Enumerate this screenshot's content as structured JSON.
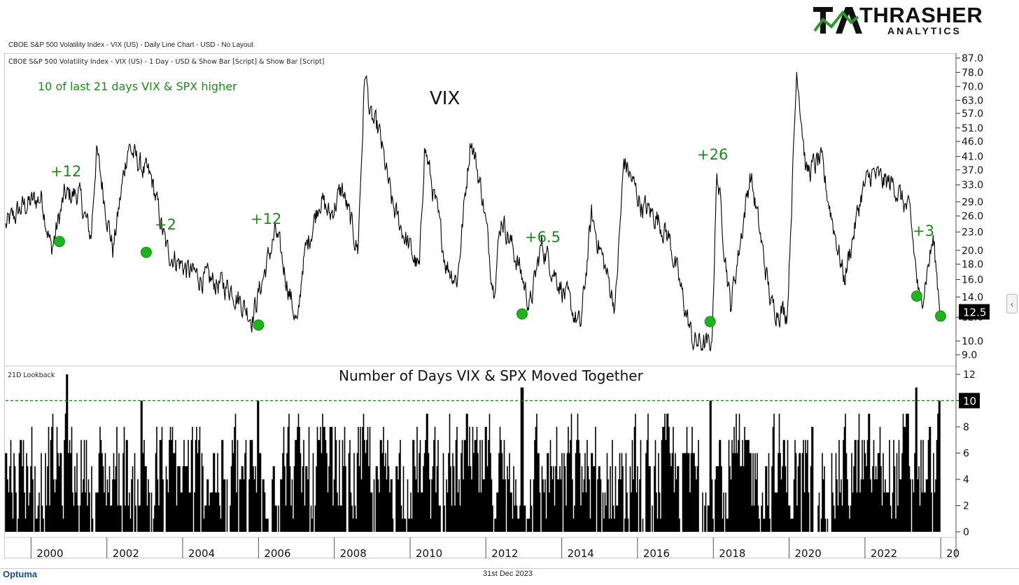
{
  "brand": {
    "name_main": "THRASHER",
    "name_sub": "ANALYTICS",
    "logo_mark": "TA",
    "footer_logo": "Optuma"
  },
  "header": {
    "chart_title": "CBOE S&P 500 Volatility Index - VIX (US) - Daily Line Chart - USD - No Layout"
  },
  "footer": {
    "date": "31st Dec 2023"
  },
  "chart_data": [
    {
      "type": "line",
      "panel_label": "CBOE S&P 500 Volatility Index - VIX (US) - 1 Day - USD & Show Bar [Script] & Show Bar [Script]",
      "title": "VIX",
      "subtitle": "10 of last 21 days VIX & SPX higher",
      "y_scale": "log",
      "ylim": [
        8.5,
        90
      ],
      "y_ticks": [
        "87.0",
        "78.0",
        "70.0",
        "63.0",
        "57.0",
        "51.0",
        "46.0",
        "41.0",
        "37.0",
        "33.0",
        "29.0",
        "26.0",
        "23.0",
        "20.0",
        "18.0",
        "16.0",
        "14.0",
        "12.0",
        "10.0",
        "9.0"
      ],
      "last_value": "12.5",
      "x_range": [
        "1999-05",
        "2023-12"
      ],
      "anchors": [
        {
          "date": "1999-05-01",
          "y": 24
        },
        {
          "date": "1999-10-15",
          "y": 28
        },
        {
          "date": "2000-04-15",
          "y": 30
        },
        {
          "date": "2000-07-15",
          "y": 20
        },
        {
          "date": "2000-11-15",
          "y": 30
        },
        {
          "date": "2001-04-01",
          "y": 31
        },
        {
          "date": "2001-08-01",
          "y": 22
        },
        {
          "date": "2001-09-21",
          "y": 43
        },
        {
          "date": "2002-03-01",
          "y": 20
        },
        {
          "date": "2002-07-24",
          "y": 45
        },
        {
          "date": "2002-10-09",
          "y": 40
        },
        {
          "date": "2003-03-11",
          "y": 34
        },
        {
          "date": "2003-08-01",
          "y": 20
        },
        {
          "date": "2004-03-01",
          "y": 17
        },
        {
          "date": "2004-08-01",
          "y": 16
        },
        {
          "date": "2005-04-15",
          "y": 15
        },
        {
          "date": "2005-11-01",
          "y": 12
        },
        {
          "date": "2006-06-15",
          "y": 23
        },
        {
          "date": "2007-01-15",
          "y": 11
        },
        {
          "date": "2007-03-01",
          "y": 18
        },
        {
          "date": "2007-08-16",
          "y": 30
        },
        {
          "date": "2007-11-20",
          "y": 26
        },
        {
          "date": "2008-03-17",
          "y": 32
        },
        {
          "date": "2008-08-15",
          "y": 20
        },
        {
          "date": "2008-10-24",
          "y": 80
        },
        {
          "date": "2008-12-15",
          "y": 55
        },
        {
          "date": "2009-03-09",
          "y": 49
        },
        {
          "date": "2009-07-15",
          "y": 28
        },
        {
          "date": "2010-04-01",
          "y": 17
        },
        {
          "date": "2010-05-20",
          "y": 45
        },
        {
          "date": "2010-12-15",
          "y": 18
        },
        {
          "date": "2011-04-01",
          "y": 16
        },
        {
          "date": "2011-08-08",
          "y": 48
        },
        {
          "date": "2011-12-01",
          "y": 30
        },
        {
          "date": "2012-03-15",
          "y": 15
        },
        {
          "date": "2012-06-01",
          "y": 26
        },
        {
          "date": "2012-12-01",
          "y": 17
        },
        {
          "date": "2013-03-01",
          "y": 13
        },
        {
          "date": "2013-06-20",
          "y": 21
        },
        {
          "date": "2014-07-01",
          "y": 11
        },
        {
          "date": "2014-10-15",
          "y": 26
        },
        {
          "date": "2015-06-01",
          "y": 13
        },
        {
          "date": "2015-08-24",
          "y": 40
        },
        {
          "date": "2016-02-11",
          "y": 28
        },
        {
          "date": "2016-06-27",
          "y": 26
        },
        {
          "date": "2016-11-01",
          "y": 22
        },
        {
          "date": "2017-06-15",
          "y": 10
        },
        {
          "date": "2017-12-15",
          "y": 9.5
        },
        {
          "date": "2018-02-05",
          "y": 37
        },
        {
          "date": "2018-06-15",
          "y": 13
        },
        {
          "date": "2018-12-24",
          "y": 36
        },
        {
          "date": "2019-07-15",
          "y": 13
        },
        {
          "date": "2019-12-15",
          "y": 12.5
        },
        {
          "date": "2020-03-16",
          "y": 82
        },
        {
          "date": "2020-06-15",
          "y": 36
        },
        {
          "date": "2020-10-30",
          "y": 40
        },
        {
          "date": "2021-06-15",
          "y": 16
        },
        {
          "date": "2021-12-01",
          "y": 31
        },
        {
          "date": "2022-03-07",
          "y": 36
        },
        {
          "date": "2022-06-15",
          "y": 34
        },
        {
          "date": "2022-10-12",
          "y": 33
        },
        {
          "date": "2023-03-13",
          "y": 26
        },
        {
          "date": "2023-06-15",
          "y": 13
        },
        {
          "date": "2023-10-20",
          "y": 21.7
        },
        {
          "date": "2023-12-31",
          "y": 12.5
        }
      ],
      "signals": [
        {
          "date": "2000-10-01",
          "y": 21.4,
          "label": "+12"
        },
        {
          "date": "2003-01-15",
          "y": 19.7,
          "label": "+2"
        },
        {
          "date": "2006-01-01",
          "y": 11.3,
          "label": "+12"
        },
        {
          "date": "2012-12-15",
          "y": 12.3,
          "label": "+6.5"
        },
        {
          "date": "2017-12-01",
          "y": 11.6,
          "label": "+26"
        },
        {
          "date": "2023-05-15",
          "y": 14.1,
          "label": "+3"
        },
        {
          "date": "2023-12-31",
          "y": 12.1,
          "label": ""
        }
      ],
      "colors": {
        "line": "#000000",
        "signal": "#1db41d",
        "signal_text": "#1a8a1a",
        "subtitle": "#1a8a1a"
      }
    },
    {
      "type": "bar",
      "panel_label": "21D Lookback",
      "title": "Number of Days VIX & SPX Moved Together",
      "ylim": [
        0,
        12
      ],
      "y_ticks": [
        "12",
        "10",
        "8",
        "6",
        "4",
        "2",
        "0"
      ],
      "threshold": 10,
      "last_value": "10",
      "spikes": [
        {
          "date": "2000-12-15",
          "y": 12
        },
        {
          "date": "2002-12-01",
          "y": 10
        },
        {
          "date": "2006-01-01",
          "y": 10
        },
        {
          "date": "2012-12-15",
          "y": 11
        },
        {
          "date": "2017-12-01",
          "y": 10
        },
        {
          "date": "2023-05-15",
          "y": 11
        },
        {
          "date": "2023-12-20",
          "y": 10
        }
      ],
      "colors": {
        "bars": "#000000",
        "threshold": "#1a7a1a"
      }
    }
  ],
  "x_axis": {
    "labels": [
      "2000",
      "2002",
      "2004",
      "2006",
      "2008",
      "2010",
      "2012",
      "2014",
      "2016",
      "2018",
      "2020",
      "2022",
      "20"
    ]
  }
}
